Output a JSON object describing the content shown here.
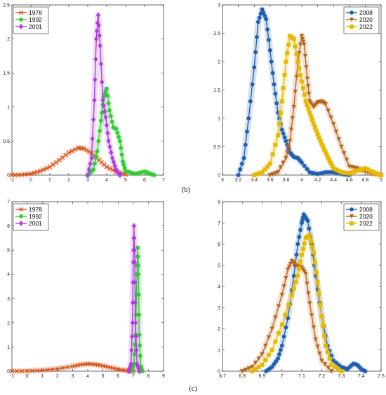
{
  "captions": [
    "(b)",
    "(c)"
  ],
  "chart_data": [
    {
      "type": "line",
      "xlim": [
        -1,
        7
      ],
      "ylim": [
        0,
        2.5
      ],
      "xticks": [
        -1,
        0,
        1,
        2,
        3,
        4,
        5,
        6,
        7
      ],
      "yticks": [
        0,
        0.5,
        1,
        1.5,
        2,
        2.5
      ],
      "xticklabels": [
        "-1",
        "0",
        "1",
        "2",
        "3",
        "4",
        "5",
        "6",
        "7"
      ],
      "yticklabels": [
        "0",
        "0.5",
        "1",
        "1.5",
        "2",
        "2.5"
      ],
      "legend": "top-left",
      "series": [
        {
          "name": "1978",
          "color": "#d95319",
          "marker": "x",
          "x": [
            -1,
            -0.5,
            0,
            0.5,
            1,
            1.5,
            2,
            2.5,
            2.8,
            3.2,
            3.6,
            4,
            4.5,
            5
          ],
          "y": [
            0,
            0.005,
            0.02,
            0.06,
            0.12,
            0.22,
            0.33,
            0.4,
            0.39,
            0.32,
            0.22,
            0.12,
            0.05,
            0.01
          ]
        },
        {
          "name": "1992",
          "color": "#33cc33",
          "marker": "o",
          "x": [
            3,
            3.3,
            3.5,
            3.7,
            3.85,
            4,
            4.15,
            4.35,
            4.5,
            4.7,
            4.85,
            5,
            5.5,
            6,
            6.2,
            6.5
          ],
          "y": [
            0,
            0.08,
            0.35,
            0.8,
            1.15,
            1.27,
            0.95,
            0.7,
            0.68,
            0.5,
            0.2,
            0.06,
            0.02,
            0.05,
            0.03,
            0
          ]
        },
        {
          "name": "2001",
          "color": "#b03ce0",
          "marker": "d",
          "x": [
            3,
            3.2,
            3.35,
            3.45,
            3.55,
            3.65,
            3.8,
            3.95,
            4.1,
            4.3,
            4.5,
            4.7
          ],
          "y": [
            0,
            0.25,
            1.1,
            2.0,
            2.35,
            1.9,
            1.1,
            0.85,
            0.5,
            0.25,
            0.08,
            0
          ]
        }
      ]
    },
    {
      "type": "line",
      "xlim": [
        3,
        5
      ],
      "ylim": [
        0,
        3
      ],
      "xticks": [
        3,
        3.2,
        3.4,
        3.6,
        3.8,
        4,
        4.2,
        4.4,
        4.6,
        4.8,
        5
      ],
      "yticks": [
        0,
        0.5,
        1,
        1.5,
        2,
        2.5,
        3
      ],
      "xticklabels": [
        "3",
        "3.2",
        "3.4",
        "3.6",
        "3.8",
        "4",
        "4.2",
        "4.4",
        "4.6",
        "4.8",
        "5"
      ],
      "yticklabels": [
        "0",
        "0.5",
        "1",
        "1.5",
        "2",
        "2.5",
        "3"
      ],
      "legend": "top-right",
      "series": [
        {
          "name": "2008",
          "color": "#1f5fb0",
          "marker": "o",
          "x": [
            3.2,
            3.27,
            3.33,
            3.4,
            3.45,
            3.5,
            3.55,
            3.6,
            3.65,
            3.7,
            3.75,
            3.8,
            3.85,
            3.9,
            3.95,
            4,
            4.1,
            4.2,
            4.3,
            4.4,
            4.5,
            4.6
          ],
          "y": [
            0,
            0.3,
            1.0,
            1.9,
            2.7,
            2.92,
            2.75,
            2.2,
            1.6,
            1.1,
            0.8,
            0.6,
            0.4,
            0.32,
            0.3,
            0.22,
            0.05,
            0.02,
            0.05,
            0.05,
            0.02,
            0
          ]
        },
        {
          "name": "2020",
          "color": "#b5651d",
          "marker": "v",
          "x": [
            3.6,
            3.7,
            3.8,
            3.85,
            3.9,
            3.95,
            4,
            4.03,
            4.07,
            4.1,
            4.15,
            4.2,
            4.25,
            4.3,
            4.4,
            4.5,
            4.6,
            4.7,
            4.8,
            4.9,
            5
          ],
          "y": [
            0,
            0.05,
            0.3,
            0.6,
            1.2,
            2.0,
            2.45,
            2.3,
            1.7,
            1.3,
            1.2,
            1.28,
            1.3,
            1.25,
            0.9,
            0.5,
            0.15,
            0.12,
            0.06,
            0.02,
            0
          ]
        },
        {
          "name": "2022",
          "color": "#e6b800",
          "marker": "s",
          "x": [
            3.4,
            3.5,
            3.6,
            3.7,
            3.75,
            3.8,
            3.85,
            3.9,
            3.95,
            4,
            4.05,
            4.1,
            4.15,
            4.2,
            4.25,
            4.3,
            4.35,
            4.4,
            4.5,
            4.6,
            4.7,
            4.8,
            4.9,
            5
          ],
          "y": [
            0,
            0.05,
            0.2,
            0.7,
            1.3,
            2.0,
            2.45,
            2.4,
            2.0,
            1.65,
            1.3,
            1.1,
            0.9,
            0.72,
            0.55,
            0.4,
            0.25,
            0.12,
            0.05,
            0.03,
            0.08,
            0.12,
            0.05,
            0
          ]
        }
      ]
    },
    {
      "type": "line",
      "xlim": [
        -1,
        9
      ],
      "ylim": [
        0,
        7
      ],
      "xticks": [
        -1,
        0,
        1,
        2,
        3,
        4,
        5,
        6,
        7,
        8,
        9
      ],
      "yticks": [
        0,
        1,
        2,
        3,
        4,
        5,
        6,
        7
      ],
      "xticklabels": [
        "-1",
        "0",
        "1",
        "2",
        "3",
        "4",
        "5",
        "6",
        "7",
        "8",
        "9"
      ],
      "yticklabels": [
        "0",
        "1",
        "2",
        "3",
        "4",
        "5",
        "6",
        "7"
      ],
      "legend": "top-left",
      "series": [
        {
          "name": "1978",
          "color": "#d95319",
          "marker": "x",
          "x": [
            -1,
            0,
            1,
            2,
            3,
            3.5,
            4,
            4.5,
            5,
            5.5,
            6,
            6.5,
            7
          ],
          "y": [
            0,
            0.01,
            0.04,
            0.1,
            0.2,
            0.27,
            0.3,
            0.28,
            0.22,
            0.15,
            0.08,
            0.03,
            0
          ]
        },
        {
          "name": "1992",
          "color": "#33cc33",
          "marker": "o",
          "x": [
            6.9,
            7.05,
            7.15,
            7.25,
            7.3,
            7.35,
            7.4,
            7.5,
            7.6
          ],
          "y": [
            0,
            0.3,
            1.5,
            4.0,
            5.1,
            4.0,
            1.5,
            0.2,
            0
          ]
        },
        {
          "name": "2001",
          "color": "#b03ce0",
          "marker": "d",
          "x": [
            6.7,
            6.85,
            6.95,
            7.0,
            7.05,
            7.1,
            7.15,
            7.25,
            7.4
          ],
          "y": [
            0,
            0.3,
            2.0,
            4.5,
            6.0,
            4.5,
            2.0,
            0.3,
            0
          ]
        }
      ]
    },
    {
      "type": "line",
      "xlim": [
        6.7,
        7.5
      ],
      "ylim": [
        0,
        8
      ],
      "xticks": [
        6.7,
        6.8,
        6.9,
        7,
        7.1,
        7.2,
        7.3,
        7.4,
        7.5
      ],
      "yticks": [
        0,
        1,
        2,
        3,
        4,
        5,
        6,
        7,
        8
      ],
      "xticklabels": [
        "6.7",
        "6.8",
        "6.9",
        "7",
        "7.1",
        "7.2",
        "7.3",
        "7.4",
        "7.5"
      ],
      "yticklabels": [
        "0",
        "1",
        "2",
        "3",
        "4",
        "5",
        "6",
        "7",
        "8"
      ],
      "legend": "top-right",
      "series": [
        {
          "name": "2008",
          "color": "#1f5fb0",
          "marker": "o",
          "x": [
            6.92,
            6.95,
            6.98,
            7.0,
            7.03,
            7.06,
            7.08,
            7.1,
            7.11,
            7.13,
            7.15,
            7.17,
            7.2,
            7.23,
            7.26,
            7.3,
            7.33,
            7.36,
            7.38,
            7.4,
            7.42
          ],
          "y": [
            0,
            0.2,
            0.6,
            1.2,
            2.5,
            4.5,
            6.0,
            7.0,
            7.4,
            7.1,
            6.0,
            4.5,
            2.6,
            1.2,
            0.5,
            0.2,
            0.1,
            0.35,
            0.3,
            0.1,
            0
          ]
        },
        {
          "name": "2020",
          "color": "#b5651d",
          "marker": "v",
          "x": [
            6.8,
            6.85,
            6.9,
            6.95,
            7.0,
            7.03,
            7.05,
            7.07,
            7.1,
            7.12,
            7.14,
            7.17,
            7.2,
            7.25
          ],
          "y": [
            0,
            0.2,
            0.8,
            2.0,
            3.6,
            4.8,
            5.2,
            5.0,
            4.9,
            4.6,
            3.2,
            1.5,
            0.5,
            0
          ]
        },
        {
          "name": "2022",
          "color": "#e6b800",
          "marker": "s",
          "x": [
            6.85,
            6.9,
            6.95,
            7.0,
            7.05,
            7.08,
            7.1,
            7.12,
            7.14,
            7.16,
            7.18,
            7.2,
            7.22,
            7.25,
            7.3
          ],
          "y": [
            0,
            0.3,
            1.0,
            2.2,
            3.6,
            4.5,
            5.5,
            6.3,
            6.4,
            5.6,
            4.2,
            2.6,
            1.2,
            0.3,
            0
          ]
        }
      ]
    }
  ]
}
